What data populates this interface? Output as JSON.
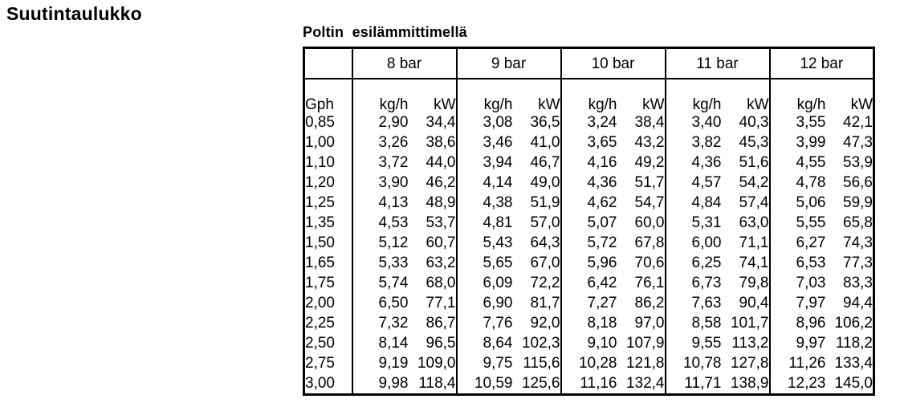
{
  "page": {
    "title": "Suutintaulukko",
    "subtitle": "Poltin  esilämmittimellä"
  },
  "table": {
    "row_header_label": "Gph",
    "pressure_headers": [
      "8 bar",
      "9 bar",
      "10 bar",
      "11 bar",
      "12 bar"
    ],
    "unit_headers": {
      "flow": "kg/h",
      "power": "kW"
    },
    "rows": [
      {
        "gph": "0,85",
        "values": [
          [
            "2,90",
            "34,4"
          ],
          [
            "3,08",
            "36,5"
          ],
          [
            "3,24",
            "38,4"
          ],
          [
            "3,40",
            "40,3"
          ],
          [
            "3,55",
            "42,1"
          ]
        ]
      },
      {
        "gph": "1,00",
        "values": [
          [
            "3,26",
            "38,6"
          ],
          [
            "3,46",
            "41,0"
          ],
          [
            "3,65",
            "43,2"
          ],
          [
            "3,82",
            "45,3"
          ],
          [
            "3,99",
            "47,3"
          ]
        ]
      },
      {
        "gph": "1,10",
        "values": [
          [
            "3,72",
            "44,0"
          ],
          [
            "3,94",
            "46,7"
          ],
          [
            "4,16",
            "49,2"
          ],
          [
            "4,36",
            "51,6"
          ],
          [
            "4,55",
            "53,9"
          ]
        ]
      },
      {
        "gph": "1,20",
        "values": [
          [
            "3,90",
            "46,2"
          ],
          [
            "4,14",
            "49,0"
          ],
          [
            "4,36",
            "51,7"
          ],
          [
            "4,57",
            "54,2"
          ],
          [
            "4,78",
            "56,6"
          ]
        ]
      },
      {
        "gph": "1,25",
        "values": [
          [
            "4,13",
            "48,9"
          ],
          [
            "4,38",
            "51,9"
          ],
          [
            "4,62",
            "54,7"
          ],
          [
            "4,84",
            "57,4"
          ],
          [
            "5,06",
            "59,9"
          ]
        ]
      },
      {
        "gph": "1,35",
        "values": [
          [
            "4,53",
            "53,7"
          ],
          [
            "4,81",
            "57,0"
          ],
          [
            "5,07",
            "60,0"
          ],
          [
            "5,31",
            "63,0"
          ],
          [
            "5,55",
            "65,8"
          ]
        ]
      },
      {
        "gph": "1,50",
        "values": [
          [
            "5,12",
            "60,7"
          ],
          [
            "5,43",
            "64,3"
          ],
          [
            "5,72",
            "67,8"
          ],
          [
            "6,00",
            "71,1"
          ],
          [
            "6,27",
            "74,3"
          ]
        ]
      },
      {
        "gph": "1,65",
        "values": [
          [
            "5,33",
            "63,2"
          ],
          [
            "5,65",
            "67,0"
          ],
          [
            "5,96",
            "70,6"
          ],
          [
            "6,25",
            "74,1"
          ],
          [
            "6,53",
            "77,3"
          ]
        ]
      },
      {
        "gph": "1,75",
        "values": [
          [
            "5,74",
            "68,0"
          ],
          [
            "6,09",
            "72,2"
          ],
          [
            "6,42",
            "76,1"
          ],
          [
            "6,73",
            "79,8"
          ],
          [
            "7,03",
            "83,3"
          ]
        ]
      },
      {
        "gph": "2,00",
        "values": [
          [
            "6,50",
            "77,1"
          ],
          [
            "6,90",
            "81,7"
          ],
          [
            "7,27",
            "86,2"
          ],
          [
            "7,63",
            "90,4"
          ],
          [
            "7,97",
            "94,4"
          ]
        ]
      },
      {
        "gph": "2,25",
        "values": [
          [
            "7,32",
            "86,7"
          ],
          [
            "7,76",
            "92,0"
          ],
          [
            "8,18",
            "97,0"
          ],
          [
            "8,58",
            "101,7"
          ],
          [
            "8,96",
            "106,2"
          ]
        ]
      },
      {
        "gph": "2,50",
        "values": [
          [
            "8,14",
            "96,5"
          ],
          [
            "8,64",
            "102,3"
          ],
          [
            "9,10",
            "107,9"
          ],
          [
            "9,55",
            "113,2"
          ],
          [
            "9,97",
            "118,2"
          ]
        ]
      },
      {
        "gph": "2,75",
        "values": [
          [
            "9,19",
            "109,0"
          ],
          [
            "9,75",
            "115,6"
          ],
          [
            "10,28",
            "121,8"
          ],
          [
            "10,78",
            "127,8"
          ],
          [
            "11,26",
            "133,4"
          ]
        ]
      },
      {
        "gph": "3,00",
        "values": [
          [
            "9,98",
            "118,4"
          ],
          [
            "10,59",
            "125,6"
          ],
          [
            "11,16",
            "132,4"
          ],
          [
            "11,71",
            "138,9"
          ],
          [
            "12,23",
            "145,0"
          ]
        ]
      }
    ]
  }
}
